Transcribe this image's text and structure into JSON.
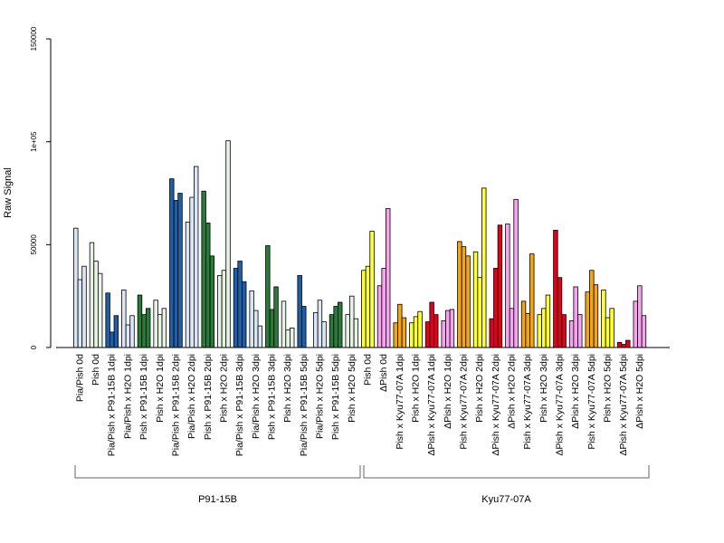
{
  "chart_data": {
    "type": "bar",
    "title": "",
    "xlabel": "",
    "ylabel": "Raw Signal",
    "ylim": [
      0,
      150000
    ],
    "yticks": [
      {
        "value": 0,
        "label": "0"
      },
      {
        "value": 50000,
        "label": "50000"
      },
      {
        "value": 100000,
        "label": "1e+05"
      },
      {
        "value": 150000,
        "label": "150000"
      }
    ],
    "grid": false,
    "legend": "none",
    "bars_per_group": 3,
    "categories": [
      "Pia/Pish 0d",
      "Pish 0d",
      "Pia/Pish x P91-15B 1dpi",
      "Pia/Pish x H2O 1dpi",
      "Pish x P91-15B 1dpi",
      "Pish x H2O 1dpi",
      "Pia/Pish x P91-15B 2dpi",
      "Pia/Pish x H2O 2dpi",
      "Pish x P91-15B 2dpi",
      "Pish x H2O 2dpi",
      "Pia/Pish x P91-15B 3dpi",
      "Pia/Pish x H2O 3dpi",
      "Pish x P91-15B 3dpi",
      "Pish x H2O 3dpi",
      "Pia/Pish x P91-15B 5dpi",
      "Pia/Pish x H2O 5dpi",
      "Pish x P91-15B 5dpi",
      "Pish x H2O 5dpi",
      "Pish 0d",
      "ΔPish 0d",
      "Pish x Kyu77-07A 1dpi",
      "Pish x H2O 1dpi",
      "ΔPish x Kyu77-07A 1dpi",
      "ΔPish x H2O 1dpi",
      "Pish x Kyu77-07A 2dpi",
      "Pish x H2O 2dpi",
      "ΔPish x Kyu77-07A 2dpi",
      "ΔPish x H2O 2dpi",
      "Pish x Kyu77-07A 3dpi",
      "Pish x H2O 3dpi",
      "ΔPish x Kyu77-07A 3dpi",
      "ΔPish x H2O 3dpi",
      "Pish x Kyu77-07A 5dpi",
      "Pish x H2O 5dpi",
      "ΔPish x Kyu77-07A 5dpi",
      "ΔPish x H2O 5dpi"
    ],
    "colors": [
      "#dbe6f4",
      "#e6f2e3",
      "#1f5fa8",
      "#dbe6f4",
      "#2a7a3a",
      "#e6f2e3",
      "#1f5fa8",
      "#dbe6f4",
      "#2a7a3a",
      "#e6f2e3",
      "#1f5fa8",
      "#dbe6f4",
      "#2a7a3a",
      "#e6f2e3",
      "#1f5fa8",
      "#dbe6f4",
      "#2a7a3a",
      "#e6f2e3",
      "#ffff33",
      "#f7a4f0",
      "#f5a511",
      "#ffff33",
      "#e3001b",
      "#f7a4f0",
      "#f5a511",
      "#ffff33",
      "#e3001b",
      "#f7a4f0",
      "#f5a511",
      "#ffff33",
      "#e3001b",
      "#f7a4f0",
      "#f5a511",
      "#ffff33",
      "#e3001b",
      "#f7a4f0"
    ],
    "values": [
      [
        58000,
        33000,
        39500
      ],
      [
        51000,
        42000,
        36000
      ],
      [
        26500,
        7500,
        15500
      ],
      [
        28000,
        11000,
        15500
      ],
      [
        25500,
        16000,
        19000
      ],
      [
        23000,
        16000,
        19000
      ],
      [
        82000,
        71500,
        75000
      ],
      [
        61000,
        73000,
        88000
      ],
      [
        76000,
        60500,
        44500
      ],
      [
        35000,
        37500,
        100500
      ],
      [
        38500,
        42000,
        32000
      ],
      [
        27500,
        18000,
        10500
      ],
      [
        49500,
        18500,
        29500
      ],
      [
        22500,
        8500,
        9500
      ],
      [
        35000,
        20000,
        0
      ],
      [
        17000,
        23000,
        12500
      ],
      [
        16000,
        20000,
        22000
      ],
      [
        16000,
        25000,
        14000
      ],
      [
        37500,
        39500,
        56500
      ],
      [
        30000,
        38500,
        67500
      ],
      [
        12000,
        21000,
        14500
      ],
      [
        12000,
        15000,
        17500
      ],
      [
        12500,
        22000,
        16000
      ],
      [
        13000,
        18000,
        18500
      ],
      [
        51500,
        49000,
        44500
      ],
      [
        46500,
        34000,
        77500
      ],
      [
        14000,
        38500,
        59500
      ],
      [
        60000,
        19000,
        72000
      ],
      [
        22500,
        16500,
        45500
      ],
      [
        16000,
        19000,
        25500
      ],
      [
        57000,
        34000,
        16000
      ],
      [
        13000,
        29500,
        16000
      ],
      [
        27000,
        37500,
        30500
      ],
      [
        28000,
        14500,
        19000
      ],
      [
        2500,
        1500,
        3500
      ],
      [
        22500,
        30000,
        15500
      ]
    ],
    "groups": [
      {
        "label": "P91-15B",
        "from": 0,
        "to": 17
      },
      {
        "label": "Kyu77-07A",
        "from": 18,
        "to": 35
      }
    ]
  }
}
